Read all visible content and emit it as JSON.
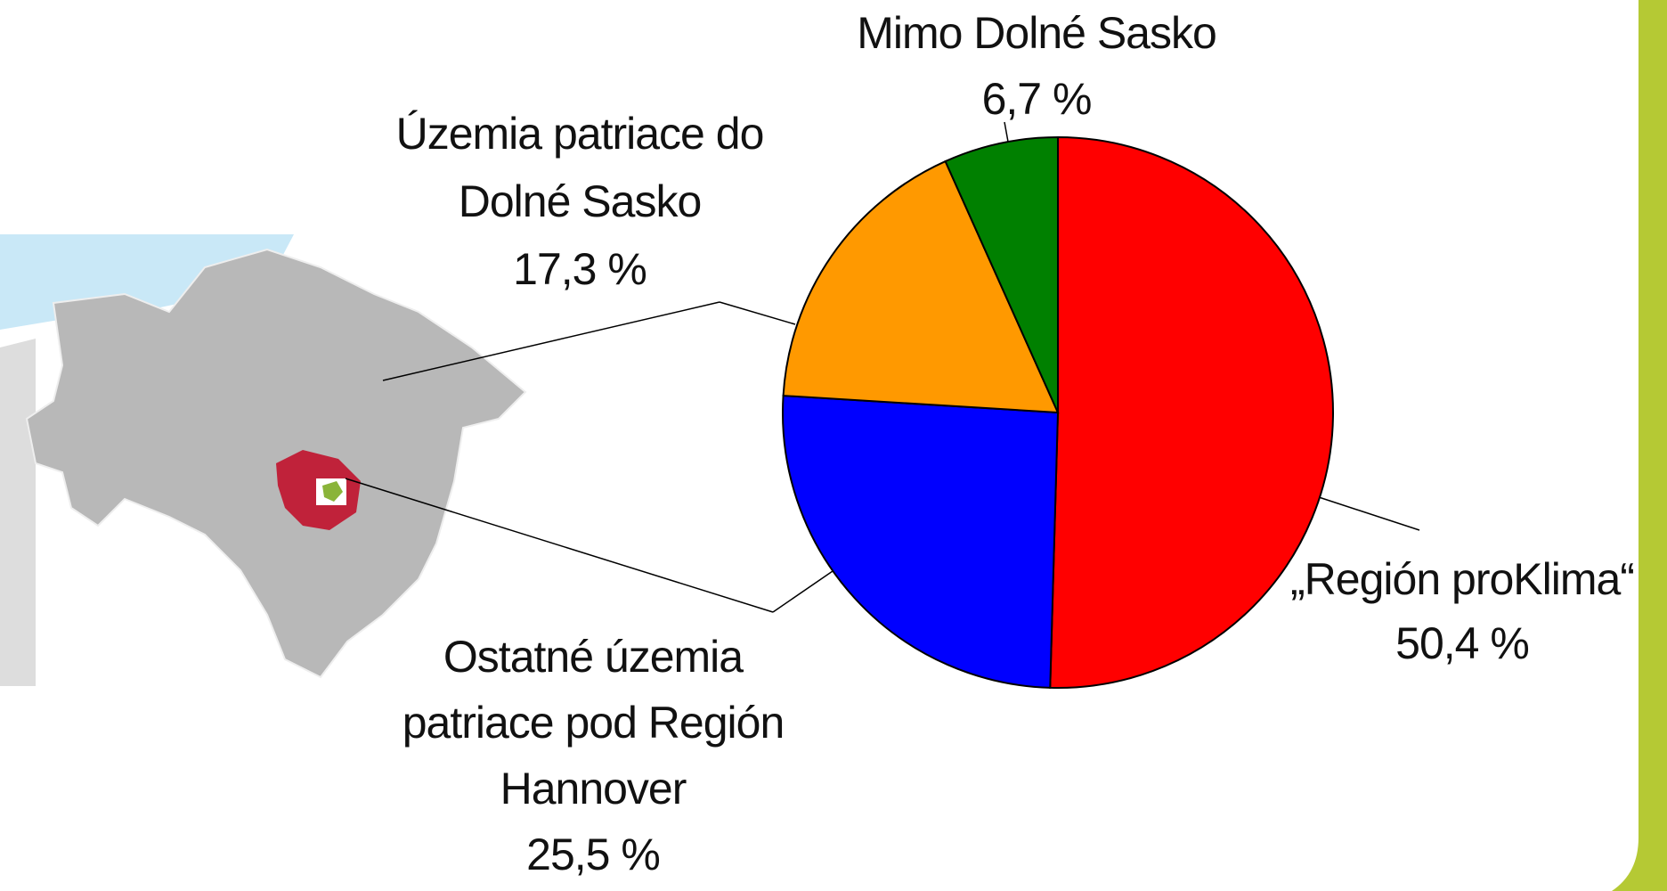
{
  "chart_data": {
    "type": "pie",
    "categories": [
      "„Región proKlima“",
      "Ostatné územia patriace pod Región Hannover",
      "Územia patriace do Dolné Sasko",
      "Mimo Dolné Sasko"
    ],
    "values": [
      50.4,
      25.5,
      17.3,
      6.7
    ],
    "value_labels": [
      "50,4 %",
      "25,5 %",
      "17,3 %",
      "6,7 %"
    ],
    "colors": [
      "#ff0000",
      "#0000ff",
      "#ff9900",
      "#008000"
    ]
  }
}
